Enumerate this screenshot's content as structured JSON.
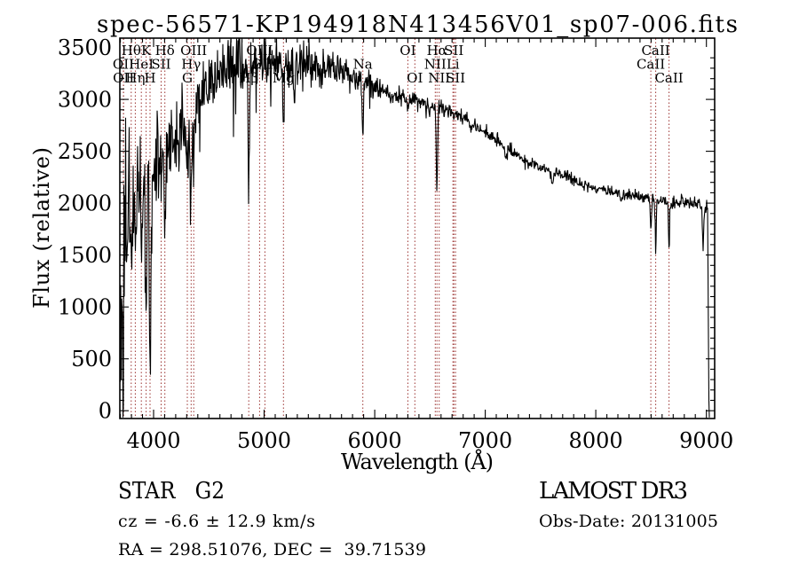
{
  "window": {
    "background": "#ffffff"
  },
  "chart_data": {
    "type": "line",
    "title": "spec-56571-KP194918N413456V01_sp07-006.fits",
    "xlabel": "Wavelength (Å)",
    "ylabel": "Flux (relative)",
    "xlim": [
      3695,
      9075
    ],
    "ylim": [
      -75,
      3590
    ],
    "xticks": [
      4000,
      5000,
      6000,
      7000,
      8000,
      9000
    ],
    "yticks": [
      0,
      500,
      1000,
      1500,
      2000,
      2500,
      3000,
      3500
    ],
    "x_minor_step": 100,
    "y_minor_step": 100,
    "grid": false,
    "legend": "none",
    "series_color": "#000000",
    "axis_color": "#000000",
    "marker_line_color": "#9c3432",
    "marker_label_color": "#000000",
    "line_markers": [
      {
        "label": "OII",
        "wavelength": 3727,
        "row": 2
      },
      {
        "label": "OII",
        "wavelength": 3729,
        "row": 3
      },
      {
        "label": "Hθ",
        "wavelength": 3798,
        "row": 1
      },
      {
        "label": "Hη",
        "wavelength": 3835,
        "row": 3
      },
      {
        "label": "HeI",
        "wavelength": 3889,
        "row": 2
      },
      {
        "label": "K",
        "wavelength": 3933,
        "row": 1
      },
      {
        "label": "H",
        "wavelength": 3968,
        "row": 3
      },
      {
        "label": "SII",
        "wavelength": 4068,
        "row": 2
      },
      {
        "label": "Hδ",
        "wavelength": 4102,
        "row": 1
      },
      {
        "label": "G",
        "wavelength": 4305,
        "row": 3
      },
      {
        "label": "Hγ",
        "wavelength": 4340,
        "row": 2
      },
      {
        "label": "OIII",
        "wavelength": 4363,
        "row": 1
      },
      {
        "label": "Hβ",
        "wavelength": 4861,
        "row": 3
      },
      {
        "label": "OIII",
        "wavelength": 4959,
        "row": 1
      },
      {
        "label": "OIII",
        "wavelength": 5007,
        "row": 2
      },
      {
        "label": "Mg",
        "wavelength": 5175,
        "row": 3
      },
      {
        "label": "Na",
        "wavelength": 5893,
        "row": 2
      },
      {
        "label": "OI",
        "wavelength": 6300,
        "row": 1
      },
      {
        "label": "OI",
        "wavelength": 6363,
        "row": 3
      },
      {
        "label": "NII",
        "wavelength": 6548,
        "row": 2
      },
      {
        "label": "Hα",
        "wavelength": 6563,
        "row": 1
      },
      {
        "label": "NII",
        "wavelength": 6583,
        "row": 3
      },
      {
        "label": "Li",
        "wavelength": 6708,
        "row": 2
      },
      {
        "label": "SII",
        "wavelength": 6716,
        "row": 1
      },
      {
        "label": "SII",
        "wavelength": 6731,
        "row": 3
      },
      {
        "label": "CaII",
        "wavelength": 8498,
        "row": 2
      },
      {
        "label": "CaII",
        "wavelength": 8542,
        "row": 1
      },
      {
        "label": "CaII",
        "wavelength": 8662,
        "row": 3
      }
    ],
    "spectrum": {
      "seed": 42,
      "clip_max": 3585,
      "clip_min": -65,
      "continuum": [
        [
          3700,
          900
        ],
        [
          3740,
          1550
        ],
        [
          3780,
          1950
        ],
        [
          3830,
          2150
        ],
        [
          3880,
          2200
        ],
        [
          3930,
          2250
        ],
        [
          3970,
          2300
        ],
        [
          4020,
          2400
        ],
        [
          4080,
          2480
        ],
        [
          4140,
          2550
        ],
        [
          4220,
          2650
        ],
        [
          4320,
          2800
        ],
        [
          4420,
          3000
        ],
        [
          4520,
          3190
        ],
        [
          4620,
          3280
        ],
        [
          4720,
          3320
        ],
        [
          4850,
          3330
        ],
        [
          5000,
          3360
        ],
        [
          5150,
          3360
        ],
        [
          5300,
          3330
        ],
        [
          5450,
          3300
        ],
        [
          5600,
          3270
        ],
        [
          5750,
          3230
        ],
        [
          5900,
          3170
        ],
        [
          6050,
          3090
        ],
        [
          6200,
          3020
        ],
        [
          6350,
          2990
        ],
        [
          6500,
          2950
        ],
        [
          6650,
          2900
        ],
        [
          6800,
          2830
        ],
        [
          6950,
          2700
        ],
        [
          7100,
          2600
        ],
        [
          7250,
          2480
        ],
        [
          7400,
          2390
        ],
        [
          7550,
          2330
        ],
        [
          7700,
          2270
        ],
        [
          7850,
          2200
        ],
        [
          8000,
          2140
        ],
        [
          8150,
          2100
        ],
        [
          8300,
          2080
        ],
        [
          8450,
          2060
        ],
        [
          8600,
          2030
        ],
        [
          8750,
          2010
        ],
        [
          8900,
          1990
        ],
        [
          9000,
          1960
        ],
        [
          9012,
          1940
        ],
        [
          9018,
          700
        ],
        [
          9024,
          -40
        ],
        [
          9030,
          -50
        ]
      ],
      "noise_profile": [
        [
          3700,
          650
        ],
        [
          3740,
          520
        ],
        [
          3790,
          340
        ],
        [
          3860,
          280
        ],
        [
          3950,
          260
        ],
        [
          4100,
          220
        ],
        [
          4300,
          185
        ],
        [
          4500,
          160
        ],
        [
          4800,
          145
        ],
        [
          5100,
          135
        ],
        [
          5400,
          110
        ],
        [
          5650,
          85
        ],
        [
          5900,
          60
        ],
        [
          6150,
          45
        ],
        [
          6400,
          40
        ],
        [
          6700,
          36
        ],
        [
          7000,
          30
        ],
        [
          7400,
          26
        ],
        [
          7800,
          26
        ],
        [
          8200,
          28
        ],
        [
          8600,
          32
        ],
        [
          8900,
          38
        ],
        [
          9030,
          40
        ]
      ],
      "absorption_features": [
        {
          "wl": 3727,
          "depth": 150,
          "sigma": 3
        },
        {
          "wl": 3798,
          "depth": 550,
          "sigma": 5
        },
        {
          "wl": 3835,
          "depth": 650,
          "sigma": 5
        },
        {
          "wl": 3889,
          "depth": 550,
          "sigma": 5
        },
        {
          "wl": 3933,
          "depth": 1500,
          "sigma": 7
        },
        {
          "wl": 3968,
          "depth": 1900,
          "sigma": 7
        },
        {
          "wl": 4068,
          "depth": 350,
          "sigma": 5
        },
        {
          "wl": 4102,
          "depth": 680,
          "sigma": 7
        },
        {
          "wl": 4227,
          "depth": 250,
          "sigma": 5
        },
        {
          "wl": 4305,
          "depth": 480,
          "sigma": 9
        },
        {
          "wl": 4340,
          "depth": 580,
          "sigma": 7
        },
        {
          "wl": 4383,
          "depth": 280,
          "sigma": 5
        },
        {
          "wl": 4861,
          "depth": 1320,
          "sigma": 6
        },
        {
          "wl": 5175,
          "depth": 660,
          "sigma": 8
        },
        {
          "wl": 5270,
          "depth": 250,
          "sigma": 6
        },
        {
          "wl": 5893,
          "depth": 520,
          "sigma": 5
        },
        {
          "wl": 6300,
          "depth": 90,
          "sigma": 4
        },
        {
          "wl": 6494,
          "depth": 120,
          "sigma": 5
        },
        {
          "wl": 6563,
          "depth": 800,
          "sigma": 6
        },
        {
          "wl": 6867,
          "depth": 100,
          "sigma": 6
        },
        {
          "wl": 7186,
          "depth": 80,
          "sigma": 8
        },
        {
          "wl": 7605,
          "depth": 140,
          "sigma": 9
        },
        {
          "wl": 8230,
          "depth": 90,
          "sigma": 6
        },
        {
          "wl": 8498,
          "depth": 330,
          "sigma": 5
        },
        {
          "wl": 8542,
          "depth": 530,
          "sigma": 5
        },
        {
          "wl": 8662,
          "depth": 480,
          "sigma": 5
        },
        {
          "wl": 8970,
          "depth": 360,
          "sigma": 6
        }
      ]
    }
  },
  "annotations": {
    "class_label": "STAR   G2",
    "survey": "LAMOST DR3",
    "cz": "cz = -6.6 ± 12.9 km/s",
    "obs_date": "Obs-Date: 20131005",
    "radec": "RA = 298.51076, DEC =  39.71539"
  }
}
